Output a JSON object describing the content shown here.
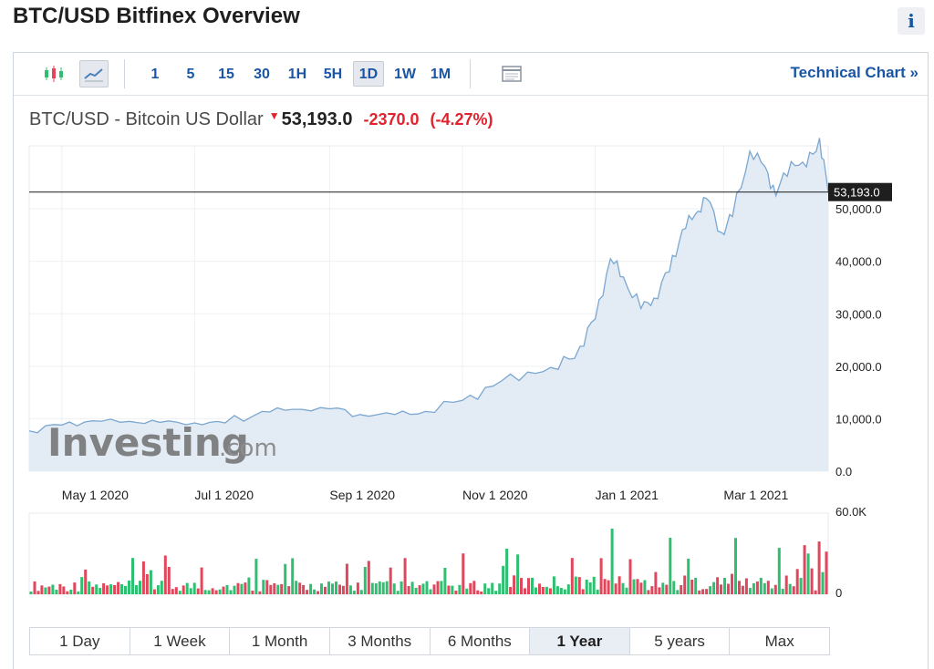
{
  "page": {
    "title": "BTC/USD Bitfinex Overview",
    "info_label": "i"
  },
  "toolbar": {
    "intervals": [
      "1",
      "5",
      "15",
      "30",
      "1H",
      "5H",
      "1D",
      "1W",
      "1M"
    ],
    "active_interval": "1D",
    "technical_chart_label": "Technical Chart »"
  },
  "quote": {
    "name": "BTC/USD - Bitcoin US Dollar",
    "price": "53,193.0",
    "change": "-2370.0",
    "change_pct": "(-4.27%)"
  },
  "ranges": [
    "1 Day",
    "1 Week",
    "1 Month",
    "3 Months",
    "6 Months",
    "1 Year",
    "5 years",
    "Max"
  ],
  "active_range": "1 Year",
  "colors": {
    "line": "#7ba7d0",
    "area": "#e3ebf4",
    "up": "#2fbf71",
    "down": "#e0475d",
    "accent": "#1a56a3"
  },
  "watermark": {
    "brand": "Investing",
    "suffix": ".com"
  },
  "chart_data": {
    "type": "area",
    "x_labels": [
      "May 1 2020",
      "Jul 1 2020",
      "Sep 1 2020",
      "Nov 1 2020",
      "Jan 1 2021",
      "Mar 1 2021"
    ],
    "y_ticks": [
      "0.0",
      "10,000.0",
      "20,000.0",
      "30,000.0",
      "40,000.0",
      "50,000.0"
    ],
    "ylim": [
      0,
      62000
    ],
    "last_value_label": "53,193.0",
    "last_value": 53193,
    "x": [
      "2020-04-16",
      "2020-05-01",
      "2020-05-15",
      "2020-06-01",
      "2020-06-15",
      "2020-07-01",
      "2020-07-15",
      "2020-08-01",
      "2020-08-15",
      "2020-09-01",
      "2020-09-15",
      "2020-10-01",
      "2020-10-15",
      "2020-11-01",
      "2020-11-15",
      "2020-12-01",
      "2020-12-15",
      "2020-12-25",
      "2021-01-01",
      "2021-01-08",
      "2021-01-14",
      "2021-01-22",
      "2021-01-28",
      "2021-02-04",
      "2021-02-10",
      "2021-02-16",
      "2021-02-21",
      "2021-02-28",
      "2021-03-05",
      "2021-03-13",
      "2021-03-20",
      "2021-03-25",
      "2021-04-01",
      "2021-04-08",
      "2021-04-14",
      "2021-04-18"
    ],
    "values": [
      7700,
      8800,
      9600,
      9500,
      9300,
      9200,
      9200,
      11400,
      11800,
      11900,
      10800,
      10800,
      11400,
      13500,
      16200,
      18900,
      19400,
      23800,
      29000,
      40500,
      37000,
      31000,
      33000,
      38000,
      46000,
      49000,
      52000,
      45500,
      48500,
      61000,
      58000,
      52500,
      59000,
      58000,
      63500,
      53193
    ],
    "volume": {
      "axis_labels": [
        "60.0K",
        "0"
      ],
      "ylim": [
        0,
        60000
      ]
    }
  }
}
